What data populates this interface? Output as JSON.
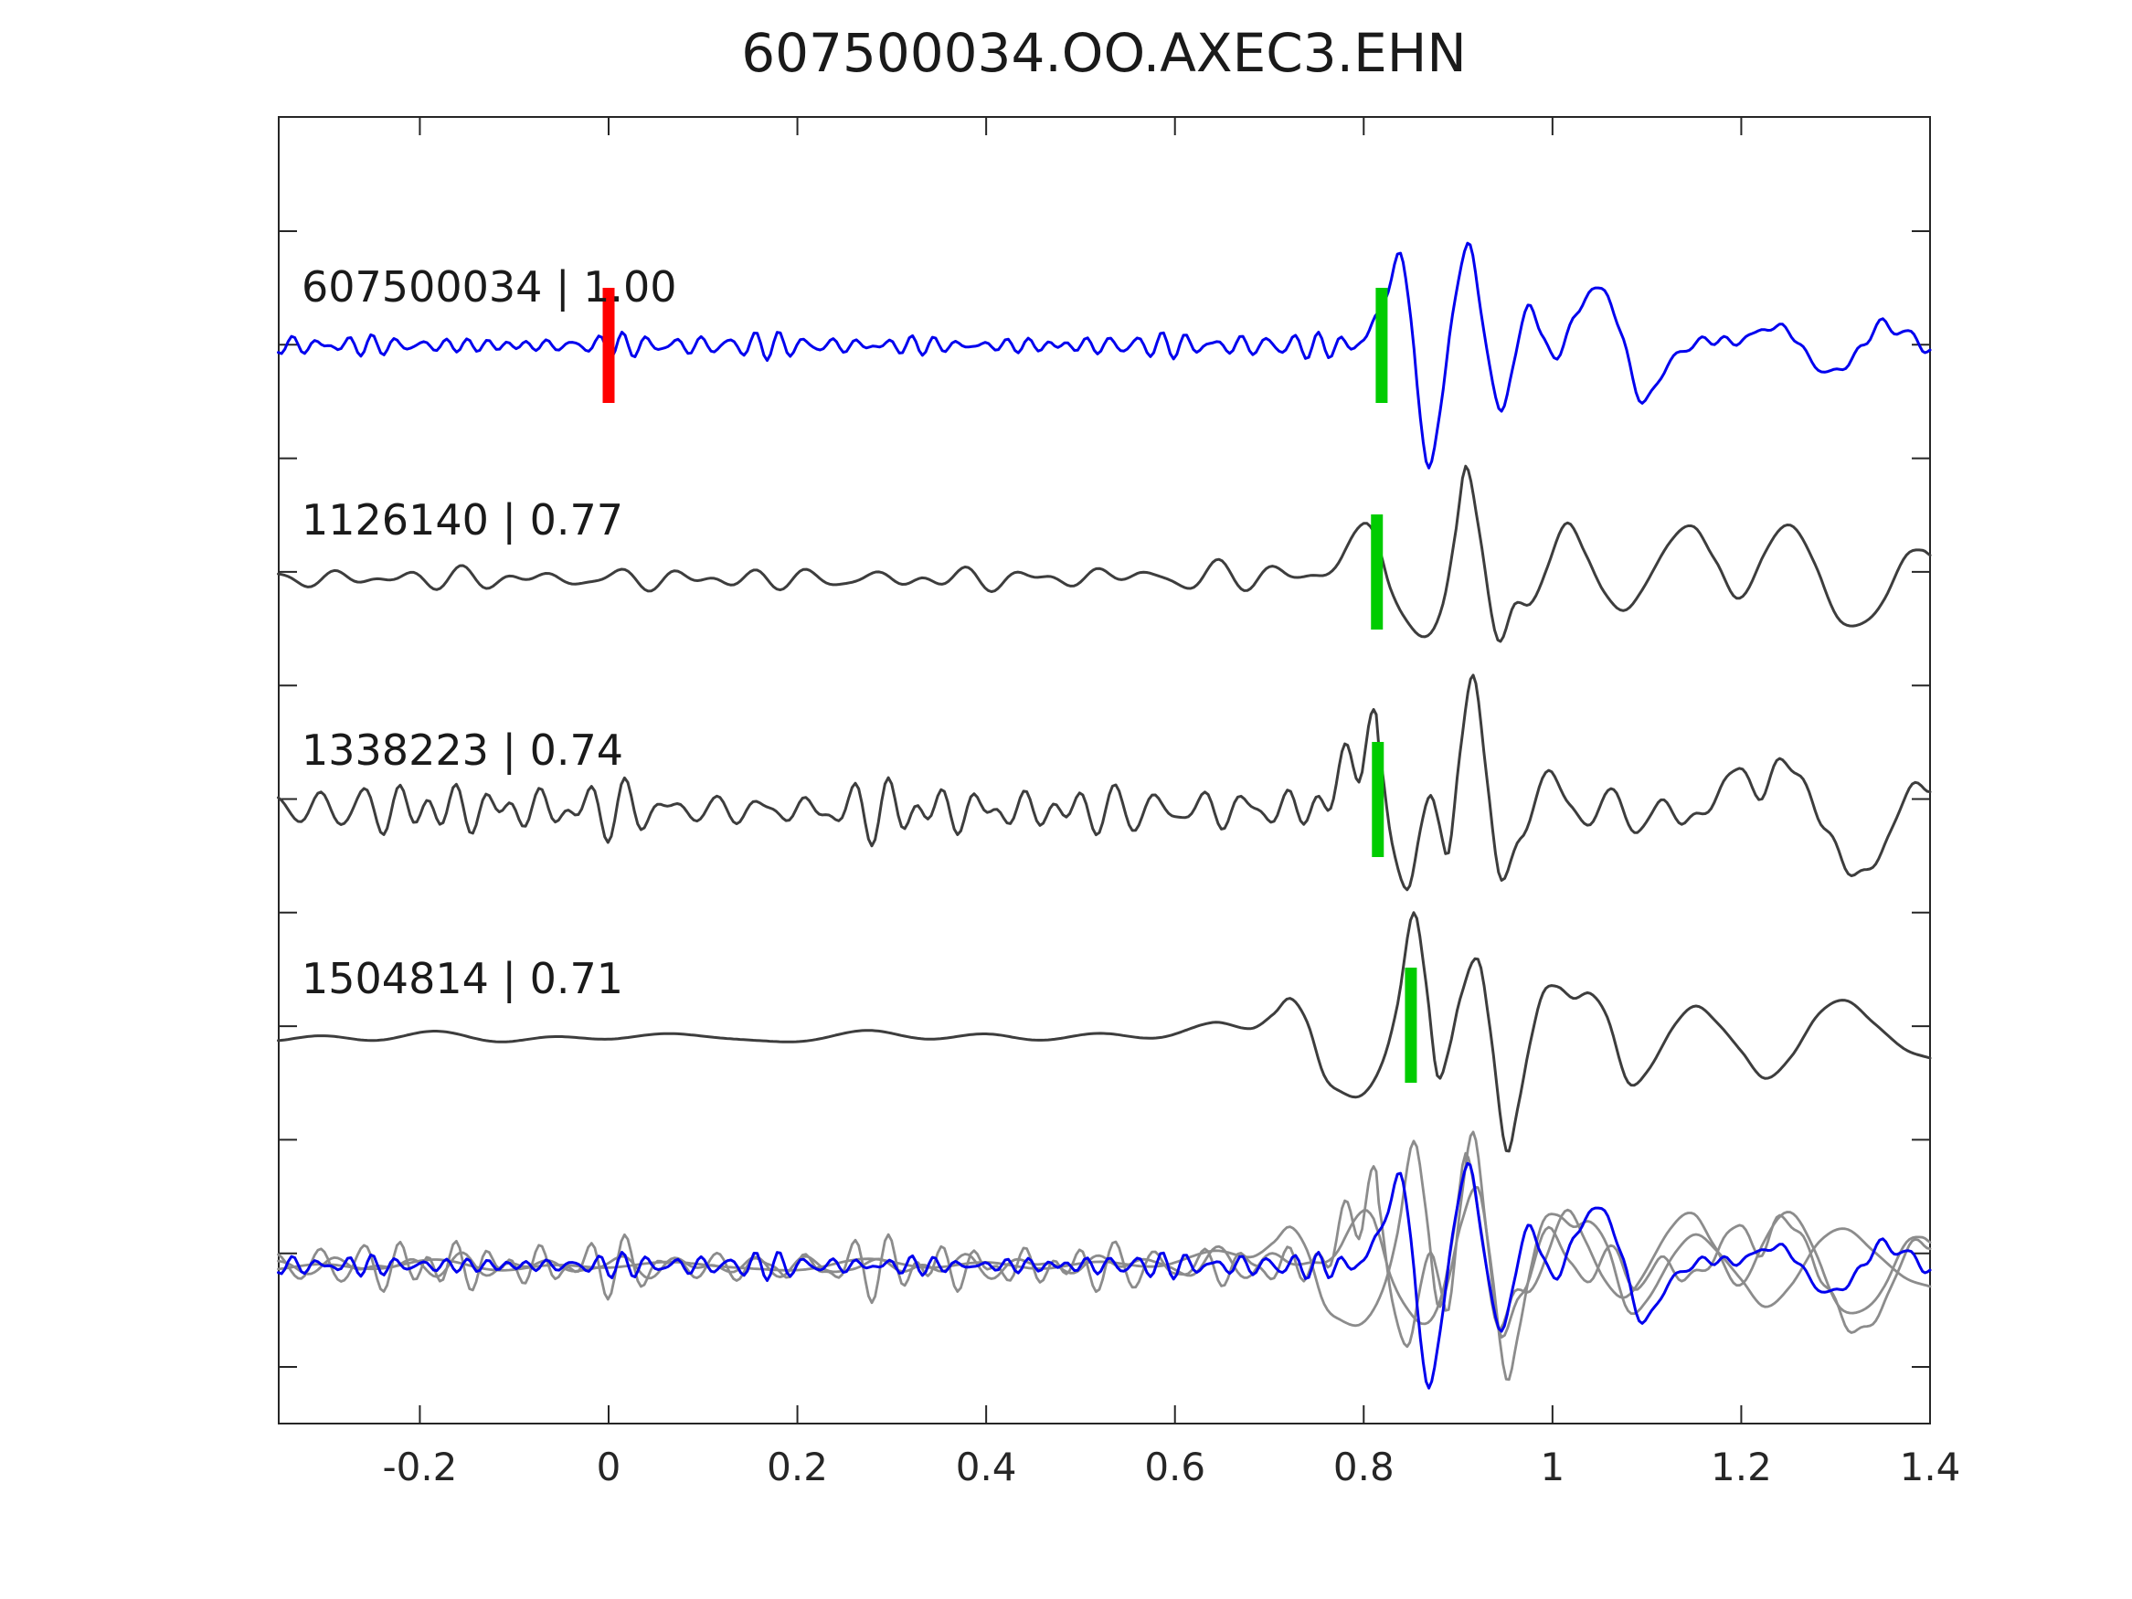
{
  "chart_data": {
    "type": "line",
    "title": "607500034.OO.AXEC3.EHN",
    "xlabel": "",
    "ylabel": "",
    "xlim": [
      -0.35,
      1.4
    ],
    "x_ticks": [
      -0.2,
      0,
      0.2,
      0.4,
      0.6,
      0.8,
      1.0,
      1.2,
      1.4
    ],
    "x_tick_labels": [
      "-0.2",
      "0",
      "0.2",
      "0.4",
      "0.6",
      "0.8",
      "1",
      "1.2",
      "1.4"
    ],
    "grid": false,
    "legend": false,
    "amplitude_unit": "px_from_row_baseline",
    "colors": {
      "template_trace": "#0000ee",
      "candidate_trace": "#3d3d3d",
      "overlay_trace": "#8c8c8c",
      "pick_marker": "#00cc00",
      "reference_marker": "#ff0000",
      "frame": "#262626",
      "text": "#1a1a1a"
    },
    "series": [
      {
        "name": "607500034",
        "label": "607500034 | 1.00",
        "similarity": "1.00",
        "role": "template",
        "color": "#0000ee",
        "pick_x": 0.819,
        "reference_marker_x": 0.0,
        "noise": {
          "amp": 8,
          "freq": 34,
          "seed": 11,
          "post": 0.4
        },
        "keypoints": [
          [
            -0.35,
            0
          ],
          [
            0.7,
            0
          ],
          [
            0.78,
            0
          ],
          [
            0.8,
            6
          ],
          [
            0.812,
            28
          ],
          [
            0.826,
            60
          ],
          [
            0.839,
            100
          ],
          [
            0.85,
            30
          ],
          [
            0.86,
            -80
          ],
          [
            0.869,
            -135
          ],
          [
            0.881,
            -70
          ],
          [
            0.894,
            30
          ],
          [
            0.91,
            112
          ],
          [
            0.924,
            40
          ],
          [
            0.943,
            -70
          ],
          [
            0.958,
            -25
          ],
          [
            0.974,
            45
          ],
          [
            0.988,
            12
          ],
          [
            1.005,
            -12
          ],
          [
            1.025,
            35
          ],
          [
            1.052,
            63
          ],
          [
            1.072,
            15
          ],
          [
            1.095,
            -62
          ],
          [
            1.115,
            -32
          ],
          [
            1.135,
            -8
          ],
          [
            1.165,
            6
          ],
          [
            1.195,
            4
          ],
          [
            1.225,
            18
          ],
          [
            1.25,
            16
          ],
          [
            1.275,
            -18
          ],
          [
            1.295,
            -30
          ],
          [
            1.32,
            -12
          ],
          [
            1.35,
            26
          ],
          [
            1.365,
            12
          ],
          [
            1.38,
            16
          ],
          [
            1.392,
            -6
          ],
          [
            1.4,
            -4
          ]
        ]
      },
      {
        "name": "1126140",
        "label": "1126140 | 0.77",
        "similarity": "0.77",
        "role": "candidate",
        "color": "#3d3d3d",
        "pick_x": 0.814,
        "noise": {
          "amp": 9,
          "freq": 18,
          "seed": 22,
          "post": 0.4
        },
        "keypoints": [
          [
            -0.35,
            0
          ],
          [
            0.5,
            0
          ],
          [
            0.56,
            6
          ],
          [
            0.6,
            -6
          ],
          [
            0.64,
            8
          ],
          [
            0.68,
            -4
          ],
          [
            0.71,
            14
          ],
          [
            0.74,
            -8
          ],
          [
            0.77,
            22
          ],
          [
            0.8,
            57
          ],
          [
            0.814,
            38
          ],
          [
            0.828,
            -12
          ],
          [
            0.845,
            -42
          ],
          [
            0.868,
            -64
          ],
          [
            0.884,
            -30
          ],
          [
            0.898,
            55
          ],
          [
            0.908,
            123
          ],
          [
            0.922,
            55
          ],
          [
            0.942,
            -67
          ],
          [
            0.96,
            -32
          ],
          [
            0.976,
            -25
          ],
          [
            0.995,
            15
          ],
          [
            1.016,
            56
          ],
          [
            1.035,
            30
          ],
          [
            1.055,
            -15
          ],
          [
            1.075,
            -35
          ],
          [
            1.095,
            -15
          ],
          [
            1.125,
            42
          ],
          [
            1.15,
            58
          ],
          [
            1.172,
            18
          ],
          [
            1.195,
            -22
          ],
          [
            1.225,
            28
          ],
          [
            1.252,
            58
          ],
          [
            1.278,
            15
          ],
          [
            1.305,
            -45
          ],
          [
            1.325,
            -55
          ],
          [
            1.352,
            -18
          ],
          [
            1.375,
            22
          ],
          [
            1.392,
            30
          ],
          [
            1.4,
            26
          ]
        ]
      },
      {
        "name": "1338223",
        "label": "1338223 | 0.74",
        "similarity": "0.74",
        "role": "candidate",
        "color": "#3d3d3d",
        "pick_x": 0.815,
        "noise": {
          "amp": 20,
          "freq": 25,
          "seed": 33,
          "post": 0.35
        },
        "keypoints": [
          [
            -0.35,
            0
          ],
          [
            0.74,
            0
          ],
          [
            0.762,
            12
          ],
          [
            0.78,
            42
          ],
          [
            0.795,
            65
          ],
          [
            0.805,
            90
          ],
          [
            0.816,
            58
          ],
          [
            0.83,
            -32
          ],
          [
            0.846,
            -88
          ],
          [
            0.86,
            -25
          ],
          [
            0.871,
            8
          ],
          [
            0.88,
            -12
          ],
          [
            0.89,
            -42
          ],
          [
            0.902,
            55
          ],
          [
            0.916,
            145
          ],
          [
            0.93,
            40
          ],
          [
            0.946,
            -78
          ],
          [
            0.966,
            -32
          ],
          [
            0.996,
            38
          ],
          [
            1.018,
            4
          ],
          [
            1.04,
            -14
          ],
          [
            1.068,
            20
          ],
          [
            1.09,
            -32
          ],
          [
            1.115,
            12
          ],
          [
            1.14,
            -18
          ],
          [
            1.168,
            8
          ],
          [
            1.198,
            42
          ],
          [
            1.222,
            18
          ],
          [
            1.25,
            55
          ],
          [
            1.272,
            12
          ],
          [
            1.3,
            -42
          ],
          [
            1.33,
            -75
          ],
          [
            1.355,
            -30
          ],
          [
            1.378,
            18
          ],
          [
            1.4,
            25
          ]
        ]
      },
      {
        "name": "1504814",
        "label": "1504814 | 0.71",
        "similarity": "0.71",
        "role": "candidate",
        "color": "#3d3d3d",
        "pick_x": 0.85,
        "noise": {
          "amp": 5,
          "freq": 6,
          "seed": 44,
          "post": 0.5
        },
        "keypoints": [
          [
            -0.35,
            0
          ],
          [
            0.3,
            0
          ],
          [
            0.4,
            4
          ],
          [
            0.5,
            -4
          ],
          [
            0.58,
            6
          ],
          [
            0.64,
            12
          ],
          [
            0.68,
            8
          ],
          [
            0.705,
            28
          ],
          [
            0.722,
            45
          ],
          [
            0.74,
            18
          ],
          [
            0.758,
            -42
          ],
          [
            0.775,
            -60
          ],
          [
            0.798,
            -64
          ],
          [
            0.82,
            -28
          ],
          [
            0.836,
            35
          ],
          [
            0.853,
            135
          ],
          [
            0.866,
            58
          ],
          [
            0.878,
            -43
          ],
          [
            0.89,
            -15
          ],
          [
            0.902,
            42
          ],
          [
            0.921,
            87
          ],
          [
            0.934,
            10
          ],
          [
            0.951,
            -123
          ],
          [
            0.963,
            -78
          ],
          [
            0.976,
            -8
          ],
          [
            0.99,
            48
          ],
          [
            1.005,
            55
          ],
          [
            1.022,
            42
          ],
          [
            1.04,
            47
          ],
          [
            1.058,
            20
          ],
          [
            1.08,
            -52
          ],
          [
            1.1,
            -40
          ],
          [
            1.13,
            16
          ],
          [
            1.152,
            38
          ],
          [
            1.175,
            18
          ],
          [
            1.2,
            -16
          ],
          [
            1.225,
            -48
          ],
          [
            1.252,
            -24
          ],
          [
            1.282,
            26
          ],
          [
            1.31,
            40
          ],
          [
            1.34,
            14
          ],
          [
            1.372,
            -12
          ],
          [
            1.4,
            -20
          ]
        ]
      }
    ],
    "overlay": {
      "description": "all traces superimposed on bottom row",
      "gray_color": "#8c8c8c",
      "blue_on_top": "607500034"
    }
  }
}
